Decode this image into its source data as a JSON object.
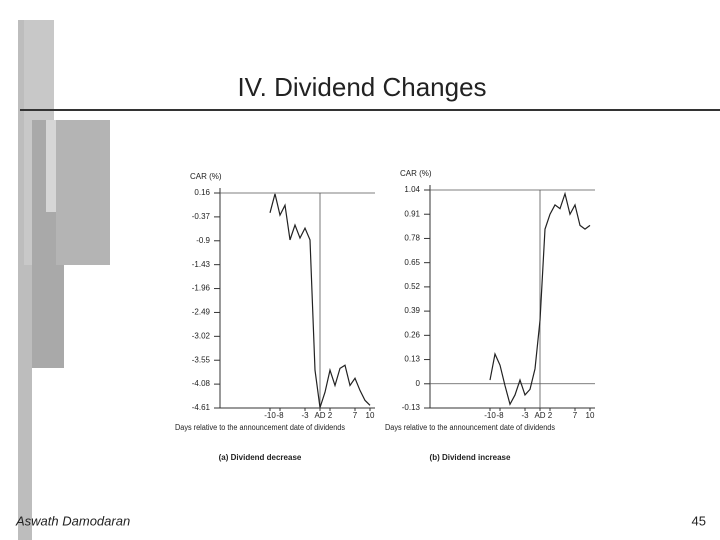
{
  "slide": {
    "title": "IV. Dividend Changes",
    "author": "Aswath Damodaran",
    "page": "45"
  },
  "chart_data": [
    {
      "type": "line",
      "caption": "(a) Dividend decrease",
      "ylabel": "CAR (%)",
      "xlabel": "Days relative to the announcement date of dividends",
      "color": "#222222",
      "x": [
        -10,
        -9,
        -8,
        -7,
        -6,
        -5,
        -4,
        -3,
        -2,
        -1,
        0,
        1,
        2,
        3,
        4,
        5,
        6,
        7,
        8,
        9,
        10
      ],
      "values": [
        -0.28,
        0.14,
        -0.33,
        -0.11,
        -0.88,
        -0.55,
        -0.84,
        -0.62,
        -0.88,
        -3.77,
        -4.6,
        -4.26,
        -3.77,
        -4.11,
        -3.73,
        -3.66,
        -4.11,
        -3.95,
        -4.22,
        -4.44,
        -4.55
      ],
      "xlim": [
        -20,
        11
      ],
      "xticks": [
        -10,
        -8,
        -3,
        {
          "value": 0,
          "label": "AD"
        },
        2,
        7,
        10
      ],
      "ylim": [
        -4.61,
        0.16
      ],
      "yticks": [
        0.16,
        -0.37,
        -0.9,
        -1.43,
        -1.96,
        -2.49,
        -3.02,
        -3.55,
        -4.08,
        -4.61
      ]
    },
    {
      "type": "line",
      "caption": "(b) Dividend increase",
      "ylabel": "CAR (%)",
      "xlabel": "Days relative to the announcement date of dividends",
      "color": "#222222",
      "x": [
        -10,
        -9,
        -8,
        -7,
        -6,
        -5,
        -4,
        -3,
        -2,
        -1,
        0,
        1,
        2,
        3,
        4,
        5,
        6,
        7,
        8,
        9,
        10
      ],
      "values": [
        0.02,
        0.16,
        0.1,
        -0.01,
        -0.11,
        -0.06,
        0.02,
        -0.06,
        -0.03,
        0.08,
        0.34,
        0.83,
        0.91,
        0.96,
        0.94,
        1.02,
        0.91,
        0.96,
        0.85,
        0.83,
        0.85
      ],
      "xlim": [
        -22,
        11
      ],
      "xticks": [
        -10,
        -8,
        -3,
        {
          "value": 0,
          "label": "AD"
        },
        2,
        7,
        10
      ],
      "ylim": [
        -0.13,
        1.04
      ],
      "yticks": [
        1.04,
        0.91,
        0.78,
        0.65,
        0.52,
        0.39,
        0.26,
        0.13,
        0,
        -0.13
      ]
    }
  ]
}
